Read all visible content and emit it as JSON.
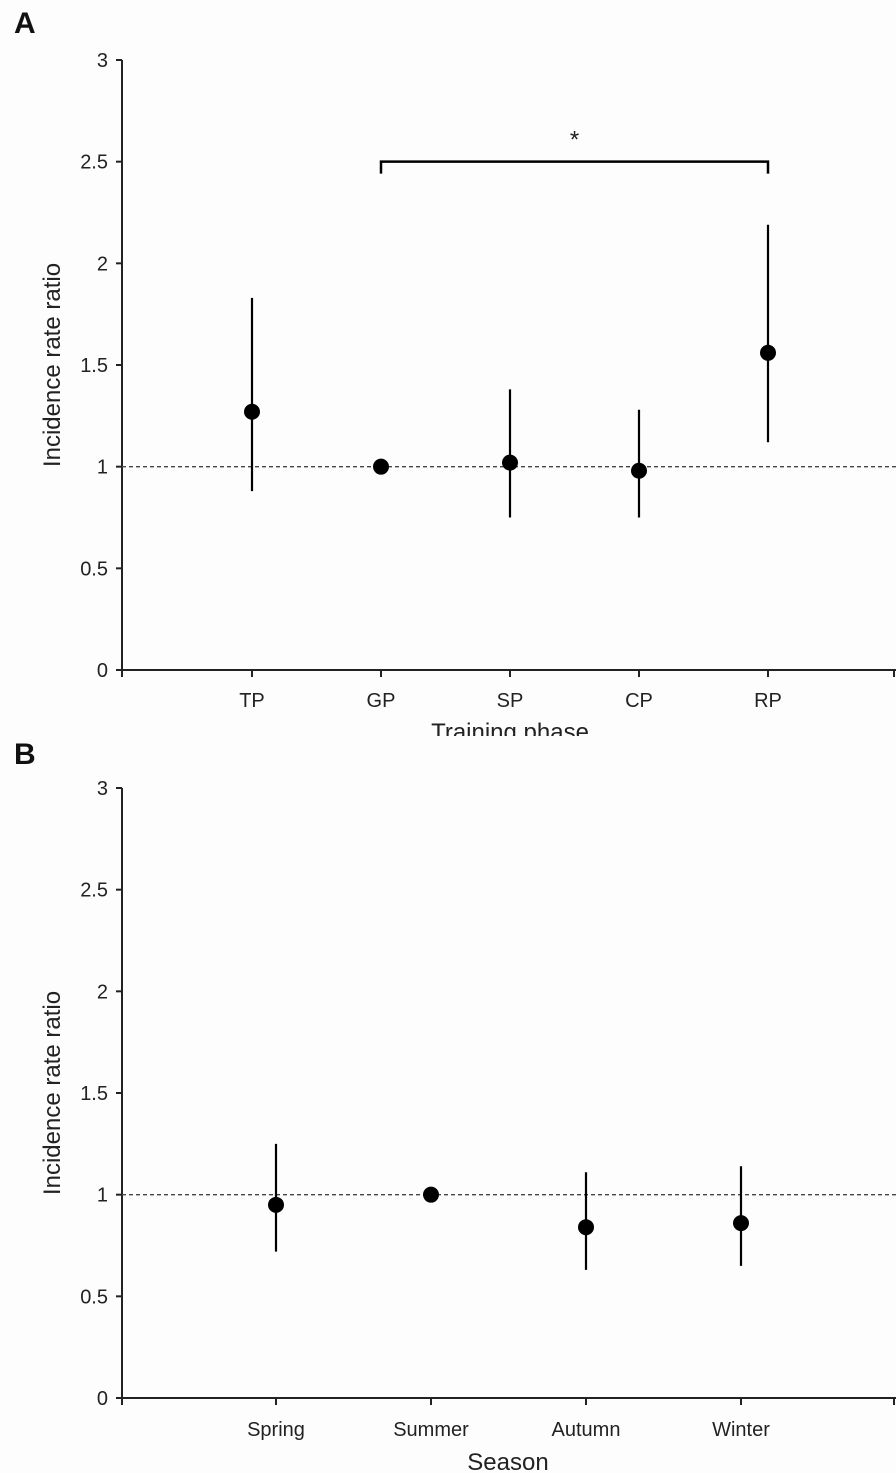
{
  "chart_data": [
    {
      "panel": "A",
      "type": "scatter",
      "xlabel": "Training phase",
      "ylabel": "Incidence rate ratio",
      "ylim": [
        0,
        3
      ],
      "yticks": [
        "0",
        "0.5",
        "1",
        "1.5",
        "2",
        "2.5",
        "3"
      ],
      "categories": [
        "TP",
        "GP",
        "SP",
        "CP",
        "RP"
      ],
      "values": [
        1.27,
        1.0,
        1.02,
        0.98,
        1.56
      ],
      "ci_lower": [
        0.88,
        null,
        0.75,
        0.75,
        1.12
      ],
      "ci_upper": [
        1.83,
        null,
        1.38,
        1.28,
        2.19
      ],
      "reference_line": 1,
      "significance": {
        "from": "GP",
        "to": "RP",
        "y": 2.5,
        "label": "*"
      },
      "colors": {
        "marker": "#000000",
        "axis": "#222222",
        "reference": "#444444"
      }
    },
    {
      "panel": "B",
      "type": "scatter",
      "xlabel": "Season",
      "ylabel": "Incidence rate ratio",
      "ylim": [
        0,
        3
      ],
      "yticks": [
        "0",
        "0.5",
        "1",
        "1.5",
        "2",
        "2.5",
        "3"
      ],
      "categories": [
        "Spring",
        "Summer",
        "Autumn",
        "Winter"
      ],
      "values": [
        0.95,
        1.0,
        0.84,
        0.86
      ],
      "ci_lower": [
        0.72,
        null,
        0.63,
        0.65
      ],
      "ci_upper": [
        1.25,
        null,
        1.11,
        1.14
      ],
      "reference_line": 1,
      "colors": {
        "marker": "#000000",
        "axis": "#222222",
        "reference": "#444444"
      }
    }
  ]
}
